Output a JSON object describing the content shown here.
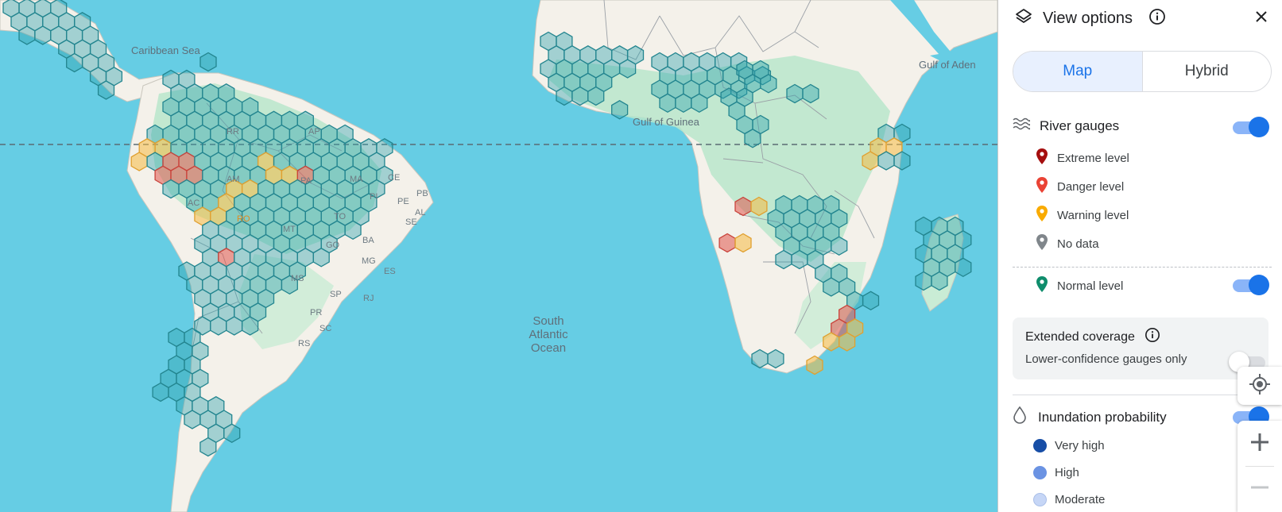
{
  "map": {
    "labels": {
      "caribbean": "Caribbean Sea",
      "gulf_guinea": "Gulf of Guinea",
      "gulf_aden": "Gulf of Aden",
      "ocean_1": "South",
      "ocean_2": "Atlantic",
      "ocean_3": "Ocean",
      "states": [
        "RR",
        "AP",
        "AM",
        "PA",
        "MA",
        "CE",
        "PB",
        "PI",
        "PE",
        "AL",
        "AC",
        "RO",
        "TO",
        "SE",
        "MT",
        "BA",
        "GO",
        "MG",
        "ES",
        "MS",
        "SP",
        "RJ",
        "PR",
        "SC",
        "RS"
      ]
    },
    "colors": {
      "ocean": "#66cde4",
      "land": "#f4f1ea",
      "vegetation": "#b8e6cb",
      "hex_normal": "#2fa3ad",
      "hex_warning": "#f5b942",
      "hex_danger": "#e0564d",
      "equator": "#5a6b73"
    }
  },
  "panel": {
    "title": "View options",
    "tabs": {
      "map": "Map",
      "hybrid": "Hybrid"
    },
    "river_gauges": {
      "label": "River gauges",
      "enabled": true,
      "legend": [
        {
          "label": "Extreme level",
          "color": "#a50e0e"
        },
        {
          "label": "Danger level",
          "color": "#ea4335"
        },
        {
          "label": "Warning level",
          "color": "#f9ab00"
        },
        {
          "label": "No data",
          "color": "#80868b"
        }
      ],
      "normal": {
        "label": "Normal level",
        "color": "#0f8d6c",
        "enabled": true
      }
    },
    "extended_coverage": {
      "title": "Extended coverage",
      "subtitle": "Lower-confidence gauges only",
      "enabled": false
    },
    "inundation": {
      "label": "Inundation probability",
      "enabled": true,
      "legend": [
        {
          "label": "Very high",
          "color": "#174ea6"
        },
        {
          "label": "High",
          "color": "#6b93e3"
        },
        {
          "label": "Moderate",
          "color": "#c6d6f6"
        }
      ]
    }
  },
  "icons": {
    "layers": "layers-icon",
    "info": "info-icon",
    "close": "close-icon",
    "waves": "waves-icon",
    "drop": "drop-icon",
    "locate": "my-location-icon",
    "zoom_in": "plus-icon",
    "zoom_out": "minus-icon"
  }
}
